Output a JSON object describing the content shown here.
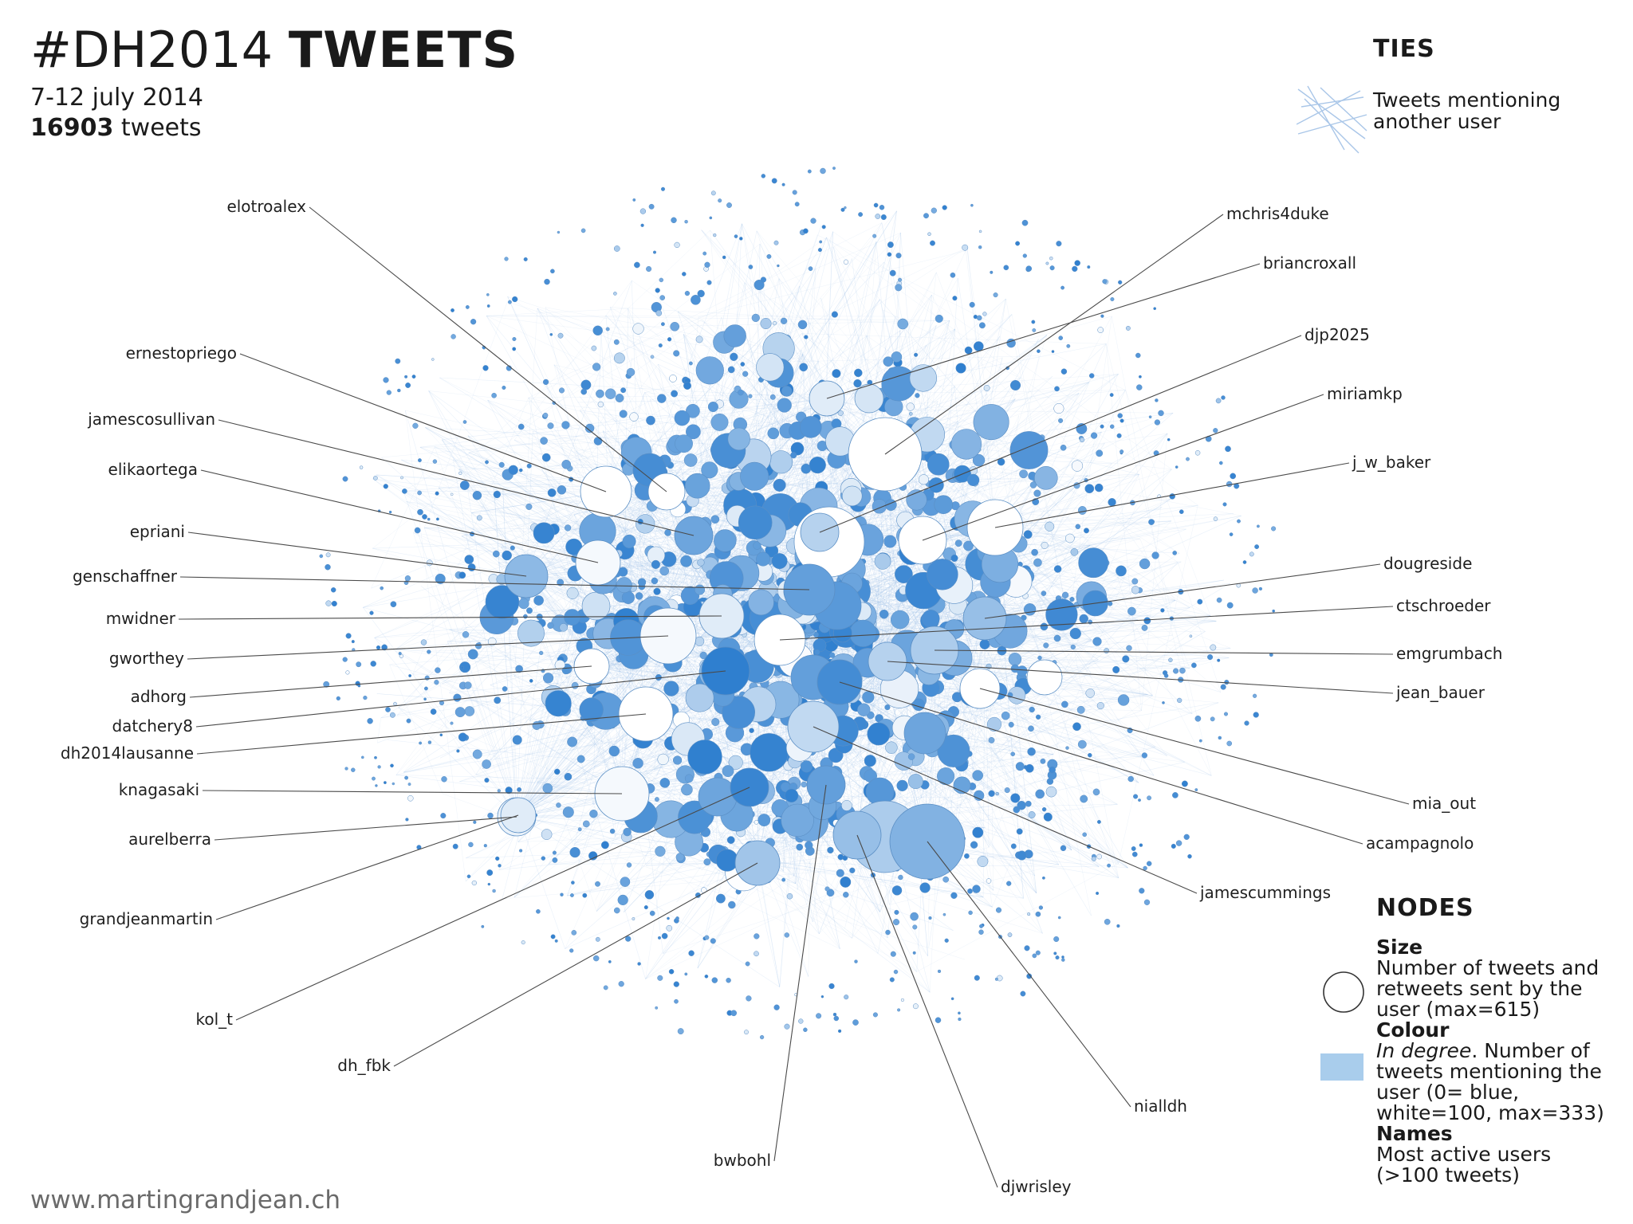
{
  "title": {
    "prefix": "#DH2014",
    "suffix": "TWEETS"
  },
  "subtitle": "7-12 july 2014",
  "tweet_count": {
    "number": "16903",
    "unit": "tweets"
  },
  "legend": {
    "ties": {
      "heading": "TIES",
      "description_line1": "Tweets mentioning",
      "description_line2": "another user"
    },
    "nodes": {
      "heading": "NODES",
      "size_title": "Size",
      "size_lines": [
        "Number of tweets and",
        "retweets sent by the",
        "user (max=615)"
      ],
      "colour_title": "Colour",
      "colour_italic": "In degree",
      "colour_rest": ". Number of",
      "colour_lines": [
        "tweets mentioning the",
        "user (0= blue,",
        "white=100, max=333)"
      ],
      "names_title": "Names",
      "names_lines": [
        "Most active users",
        "(>100 tweets)"
      ]
    }
  },
  "credit": "www.martingrandjean.ch",
  "colors": {
    "edge": "#9dbfe6",
    "node_blue": "#2f7fcf",
    "node_white": "#ffffff",
    "node_stroke": "#5b8fc5",
    "leader": "#4a4a4a"
  },
  "labels": {
    "elotroalex": "elotroalex",
    "ernestopriego": "ernestopriego",
    "jamescosullivan": "jamescosullivan",
    "elikaortega": "elikaortega",
    "epriani": "epriani",
    "genschaffner": "genschaffner",
    "mwidner": "mwidner",
    "gworthey": "gworthey",
    "adhorg": "adhorg",
    "datchery8": "datchery8",
    "dh2014lausanne": "dh2014lausanne",
    "knagasaki": "knagasaki",
    "aurelberra": "aurelberra",
    "grandjeanmartin": "grandjeanmartin",
    "kol_t": "kol_t",
    "dh_fbk": "dh_fbk",
    "bwbohl": "bwbohl",
    "djwrisley": "djwrisley",
    "nialldh": "nialldh",
    "jamescummings": "jamescummings",
    "acampagnolo": "acampagnolo",
    "mia_out": "mia_out",
    "jean_bauer": "jean_bauer",
    "emgrumbach": "emgrumbach",
    "ctschroeder": "ctschroeder",
    "dougreside": "dougreside",
    "j_w_baker": "j_w_baker",
    "miriamkp": "miriamkp",
    "djp2025": "djp2025",
    "briancroxall": "briancroxall",
    "mchris4duke": "mchris4duke"
  }
}
